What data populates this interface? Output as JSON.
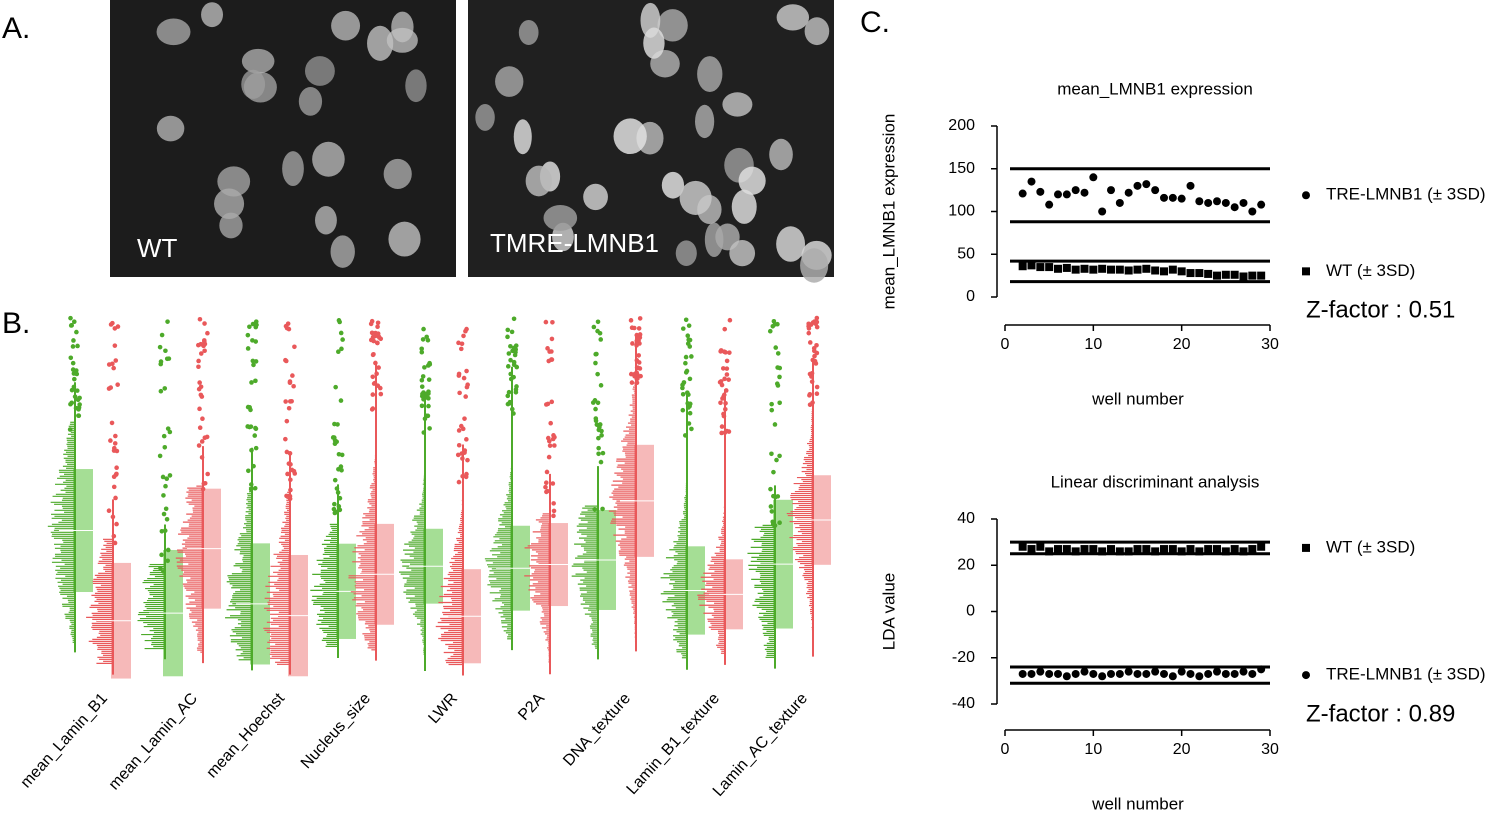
{
  "panel_labels": [
    "A.",
    "B.",
    "C."
  ],
  "panel_a": {
    "images": [
      {
        "label": "WT"
      },
      {
        "label": "TMRE-LMNB1"
      }
    ]
  },
  "panel_b": {
    "categories": [
      "mean_Lamin_B1",
      "mean_Lamin_AC",
      "mean_Hoechst",
      "Nucleus_size",
      "LWR",
      "P2A",
      "DNA_texture",
      "Lamin_B1_texture",
      "Lamin_AC_texture"
    ]
  },
  "chart_data": [
    {
      "type": "scatter",
      "title": "mean_LMNB1 expression",
      "x_label": "well number",
      "y_label": "mean_LMNB1 expression",
      "x": [
        2,
        3,
        4,
        5,
        6,
        7,
        8,
        9,
        10,
        11,
        12,
        13,
        14,
        15,
        16,
        17,
        18,
        19,
        20,
        21,
        22,
        23,
        24,
        25,
        26,
        27,
        28,
        29
      ],
      "xlim": [
        0,
        30
      ],
      "xticks": [
        0,
        10,
        20,
        30
      ],
      "ylim": [
        0,
        200
      ],
      "yticks": [
        0,
        50,
        100,
        150,
        200
      ],
      "series": [
        {
          "name": "TRE-LMNB1 (± 3SD)",
          "marker": "circle",
          "color": "#000000",
          "bounds": [
            88,
            150
          ],
          "values": [
            121,
            135,
            123,
            108,
            120,
            120,
            125,
            122,
            140,
            100,
            125,
            110,
            122,
            130,
            132,
            125,
            116,
            116,
            115,
            130,
            112,
            110,
            112,
            110,
            105,
            110,
            100,
            108
          ]
        },
        {
          "name": "WT (± 3SD)",
          "marker": "square",
          "color": "#000000",
          "bounds": [
            18,
            42
          ],
          "values": [
            36,
            37,
            35,
            35,
            33,
            34,
            32,
            33,
            32,
            33,
            32,
            32,
            31,
            32,
            33,
            31,
            30,
            32,
            30,
            28,
            28,
            27,
            25,
            26,
            26,
            24,
            25,
            25
          ]
        }
      ],
      "annotation": "Z-factor : 0.51"
    },
    {
      "type": "scatter",
      "title": "Linear discriminant analysis",
      "x_label": "well number",
      "y_label": "LDA value",
      "x": [
        2,
        3,
        4,
        5,
        6,
        7,
        8,
        9,
        10,
        11,
        12,
        13,
        14,
        15,
        16,
        17,
        18,
        19,
        20,
        21,
        22,
        23,
        24,
        25,
        26,
        27,
        28,
        29
      ],
      "xlim": [
        0,
        30
      ],
      "xticks": [
        0,
        10,
        20,
        30
      ],
      "ylim": [
        -40,
        40
      ],
      "yticks": [
        -40,
        -20,
        0,
        20,
        40
      ],
      "series": [
        {
          "name": "WT (± 3SD)",
          "marker": "square",
          "color": "#000000",
          "bounds": [
            25,
            30
          ],
          "values": [
            28,
            27,
            28,
            26,
            27,
            27,
            26,
            27,
            27,
            26,
            27,
            26,
            26,
            27,
            27,
            26,
            27,
            27,
            26,
            27,
            26,
            27,
            27,
            26,
            27,
            26,
            27,
            28
          ]
        },
        {
          "name": "TRE-LMNB1 (± 3SD)",
          "marker": "circle",
          "color": "#000000",
          "bounds": [
            -31,
            -24
          ],
          "values": [
            -27,
            -27,
            -26,
            -27,
            -27,
            -28,
            -27,
            -26,
            -27,
            -28,
            -27,
            -27,
            -26,
            -27,
            -27,
            -26,
            -27,
            -28,
            -26,
            -27,
            -28,
            -27,
            -26,
            -27,
            -27,
            -26,
            -27,
            -25
          ]
        }
      ],
      "annotation": "Z-factor : 0.89"
    }
  ]
}
